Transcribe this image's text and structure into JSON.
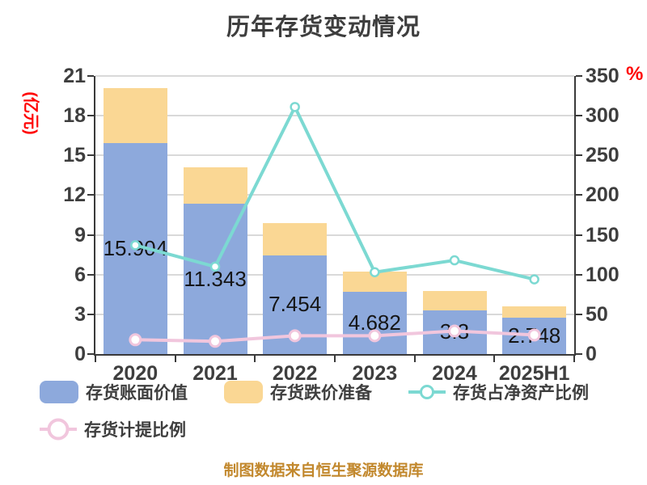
{
  "title": "历年存货变动情况",
  "footer": "制图数据来自恒生聚源数据库",
  "colors": {
    "book_value_bar": "#8DA9DC",
    "provision_bar": "#FAD794",
    "net_asset_ratio_line": "#7CD9D2",
    "provision_ratio_line": "#F1C6DD",
    "axis": "#3A3A3A",
    "grid": "#D9D9D9",
    "axis_unit_red": "#FF0000",
    "title_text": "#3E3E3E",
    "footer_text": "#C2882D"
  },
  "chart_data": {
    "type": "stacked-bar+line",
    "categories": [
      "2020",
      "2021",
      "2022",
      "2023",
      "2024",
      "2025H1"
    ],
    "left_axis": {
      "label": "(亿元)",
      "min": 0,
      "max": 21,
      "ticks": [
        0,
        3,
        6,
        9,
        12,
        15,
        18,
        21
      ]
    },
    "right_axis": {
      "label": "%",
      "min": 0,
      "max": 350,
      "ticks": [
        0,
        50,
        100,
        150,
        200,
        250,
        300,
        350
      ]
    },
    "grid": "horizontal",
    "legend_position": "bottom-left",
    "bar_series": [
      {
        "name": "存货账面价值",
        "stack": "inventory",
        "axis": "left",
        "color": "#8DA9DC",
        "values": [
          15.904,
          11.343,
          7.454,
          4.682,
          3.3,
          2.748
        ],
        "data_labels": [
          "15.904",
          "11.343",
          "7.454",
          "4.682",
          "3.3",
          "2.748"
        ]
      },
      {
        "name": "存货跌价准备",
        "stack": "inventory",
        "axis": "left",
        "color": "#FAD794",
        "values": [
          4.2,
          2.75,
          2.45,
          1.56,
          1.44,
          0.85
        ]
      }
    ],
    "line_series": [
      {
        "name": "存货占净资产比例",
        "axis": "right",
        "color": "#7CD9D2",
        "marker": "hollow-circle",
        "values": [
          137,
          110,
          311,
          103,
          118,
          94
        ]
      },
      {
        "name": "存货计提比例",
        "axis": "right",
        "color": "#F1C6DD",
        "marker": "hollow-circle",
        "values": [
          18,
          16,
          23,
          23,
          29,
          24
        ]
      }
    ]
  }
}
